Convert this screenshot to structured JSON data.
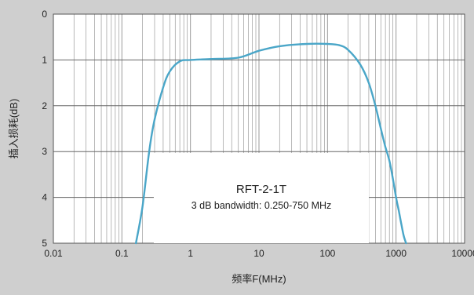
{
  "chart_data": {
    "type": "line",
    "title": "",
    "xlabel": "频率F(MHz)",
    "ylabel": "插入损耗(dB)",
    "x_scale": "log",
    "xlim": [
      0.01,
      10000
    ],
    "ylim": [
      0,
      5
    ],
    "y_inverted": true,
    "grid": true,
    "x_ticks": [
      "0.01",
      "0.1",
      "1",
      "10",
      "100",
      "1000",
      "10000"
    ],
    "y_ticks": [
      "0",
      "1",
      "2",
      "3",
      "4",
      "5"
    ],
    "annotation": {
      "title": "RFT-2-1T",
      "subtitle": "3 dB bandwidth: 0.250-750 MHz"
    },
    "colors": {
      "line": "#4aa6c8",
      "plot_bg": "#ffffff",
      "grid": "#9a9a9a",
      "background": "#cfcfcf"
    },
    "series": [
      {
        "x": [
          0.16,
          0.2,
          0.25,
          0.3,
          0.4,
          0.5,
          0.7,
          1,
          2,
          5,
          10,
          20,
          50,
          100,
          150,
          200,
          300,
          400,
          500,
          600,
          700,
          800,
          900,
          1000,
          1100,
          1200,
          1300,
          1400
        ],
        "y": [
          5.0,
          4.2,
          3.0,
          2.3,
          1.6,
          1.25,
          1.03,
          1.0,
          0.98,
          0.95,
          0.8,
          0.7,
          0.65,
          0.65,
          0.68,
          0.78,
          1.1,
          1.5,
          2.0,
          2.5,
          2.9,
          3.2,
          3.6,
          4.0,
          4.3,
          4.6,
          4.85,
          5.0
        ]
      }
    ]
  }
}
